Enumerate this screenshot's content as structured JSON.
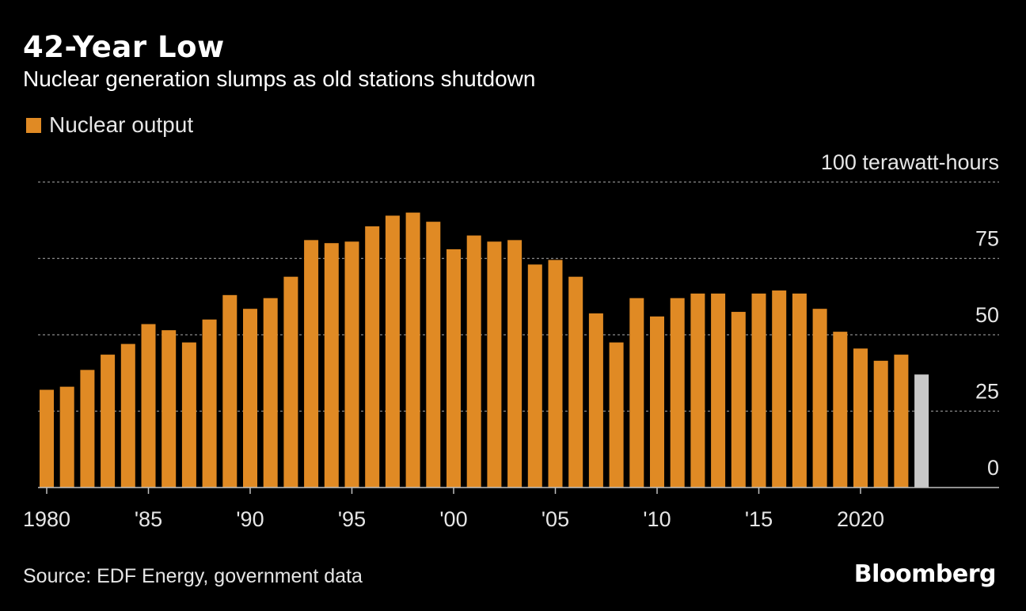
{
  "header": {
    "title": "42-Year Low",
    "subtitle": "Nuclear generation slumps as old stations shutdown"
  },
  "legend": {
    "label": "Nuclear output"
  },
  "footer": {
    "source": "Source: EDF Energy, government data",
    "brand": "Bloomberg"
  },
  "colors": {
    "bar": "#E08A24",
    "highlight": "#C8C8C8",
    "grid": "#8a8a8a",
    "axis": "#bfbfbf",
    "background": "#000000"
  },
  "chart_data": {
    "type": "bar",
    "title": "42-Year Low",
    "subtitle": "Nuclear generation slumps as old stations shutdown",
    "ylabel": "terawatt-hours",
    "ylim": [
      0,
      100
    ],
    "yticks": [
      {
        "value": 0,
        "label": "0"
      },
      {
        "value": 25,
        "label": "25"
      },
      {
        "value": 50,
        "label": "50"
      },
      {
        "value": 75,
        "label": "75"
      },
      {
        "value": 100,
        "label": "100 terawatt-hours"
      }
    ],
    "x_tick_labels": [
      {
        "year": 1980,
        "label": "1980"
      },
      {
        "year": 1985,
        "label": "'85"
      },
      {
        "year": 1990,
        "label": "'90"
      },
      {
        "year": 1995,
        "label": "'95"
      },
      {
        "year": 2000,
        "label": "'00"
      },
      {
        "year": 2005,
        "label": "'05"
      },
      {
        "year": 2010,
        "label": "'10"
      },
      {
        "year": 2015,
        "label": "'15"
      },
      {
        "year": 2020,
        "label": "2020"
      }
    ],
    "series": [
      {
        "name": "Nuclear output",
        "years": [
          1980,
          1981,
          1982,
          1983,
          1984,
          1985,
          1986,
          1987,
          1988,
          1989,
          1990,
          1991,
          1992,
          1993,
          1994,
          1995,
          1996,
          1997,
          1998,
          1999,
          2000,
          2001,
          2002,
          2003,
          2004,
          2005,
          2006,
          2007,
          2008,
          2009,
          2010,
          2011,
          2012,
          2013,
          2014,
          2015,
          2016,
          2017,
          2018,
          2019,
          2020,
          2021,
          2022,
          2023
        ],
        "values": [
          32,
          33,
          38.5,
          43.5,
          47,
          53.5,
          51.5,
          47.5,
          55,
          63,
          58.5,
          62,
          69,
          81,
          80,
          80.5,
          85.5,
          89,
          90,
          87,
          78,
          82.5,
          80.5,
          81,
          73,
          74.5,
          69,
          57,
          47.5,
          62,
          56,
          62,
          63.5,
          63.5,
          57.5,
          63.5,
          64.5,
          63.5,
          58.5,
          51,
          45.5,
          41.5,
          43.5,
          37
        ],
        "highlight_last": true
      }
    ],
    "legend": [
      "Nuclear output"
    ],
    "grid": true
  }
}
